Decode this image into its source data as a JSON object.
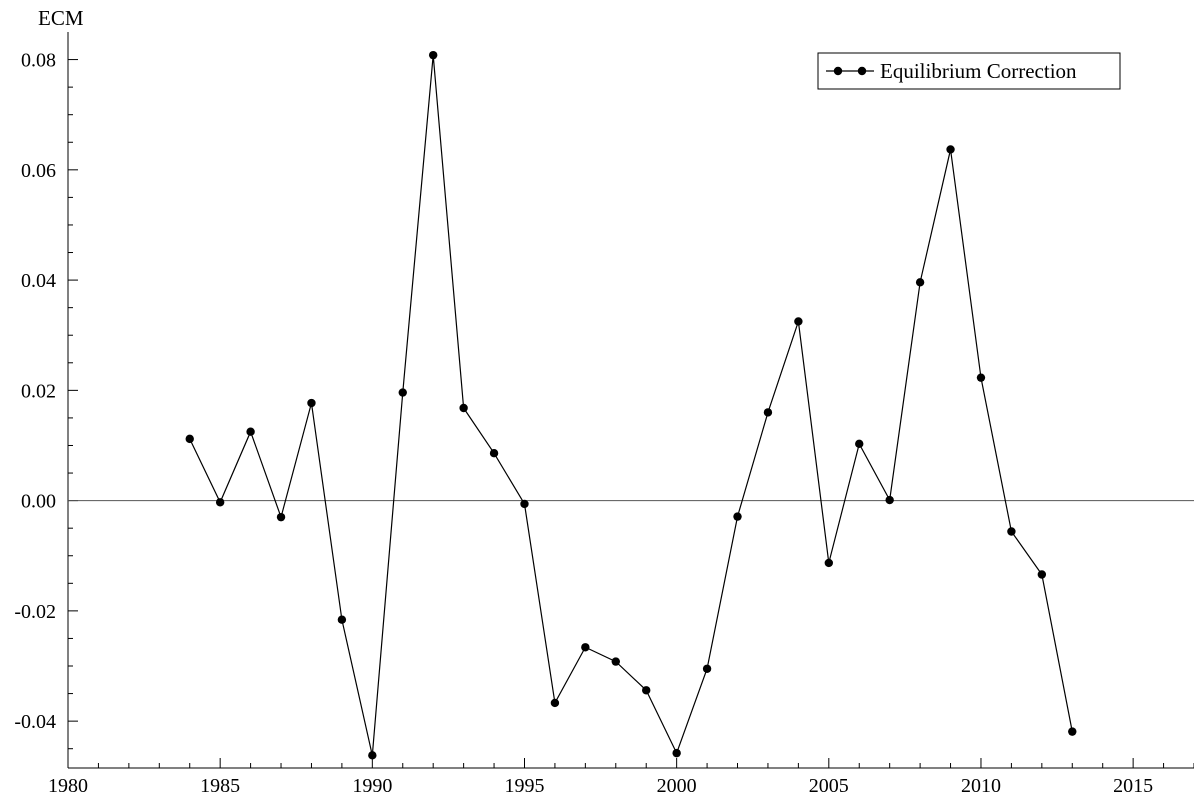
{
  "chart_data": {
    "type": "line",
    "ylabel": "ECM",
    "xlabel": "",
    "xlim": [
      1980,
      2017
    ],
    "ylim": [
      -0.0485,
      0.085
    ],
    "x_ticks": [
      1980,
      1985,
      1990,
      1995,
      2000,
      2005,
      2010,
      2015
    ],
    "x_tick_labels": [
      "1980",
      "1985",
      "1990",
      "1995",
      "2000",
      "2005",
      "2010",
      "2015"
    ],
    "y_ticks": [
      -0.04,
      -0.02,
      0.0,
      0.02,
      0.04,
      0.06,
      0.08
    ],
    "y_tick_labels": [
      "-0.04",
      "-0.02",
      "0.00",
      "0.02",
      "0.04",
      "0.06",
      "0.08"
    ],
    "zero_line": true,
    "grid": false,
    "legend_position": "top-right",
    "x": [
      1984,
      1985,
      1986,
      1987,
      1988,
      1989,
      1990,
      1991,
      1992,
      1993,
      1994,
      1995,
      1996,
      1997,
      1998,
      1999,
      2000,
      2001,
      2002,
      2003,
      2004,
      2005,
      2006,
      2007,
      2008,
      2009,
      2010,
      2011,
      2012,
      2013
    ],
    "series": [
      {
        "name": "Equilibrium Correction",
        "color": "#000000",
        "marker": "circle",
        "values": [
          0.0112,
          -0.0003,
          0.0125,
          -0.003,
          0.0177,
          -0.0216,
          -0.0462,
          0.0196,
          0.0808,
          0.0168,
          0.0086,
          -0.0006,
          -0.0367,
          -0.0266,
          -0.0292,
          -0.0344,
          -0.0458,
          -0.0305,
          -0.0029,
          0.016,
          0.0325,
          -0.0113,
          0.0103,
          0.0001,
          0.0396,
          0.0637,
          0.0223,
          -0.0056,
          -0.0134,
          -0.0419
        ]
      }
    ]
  }
}
